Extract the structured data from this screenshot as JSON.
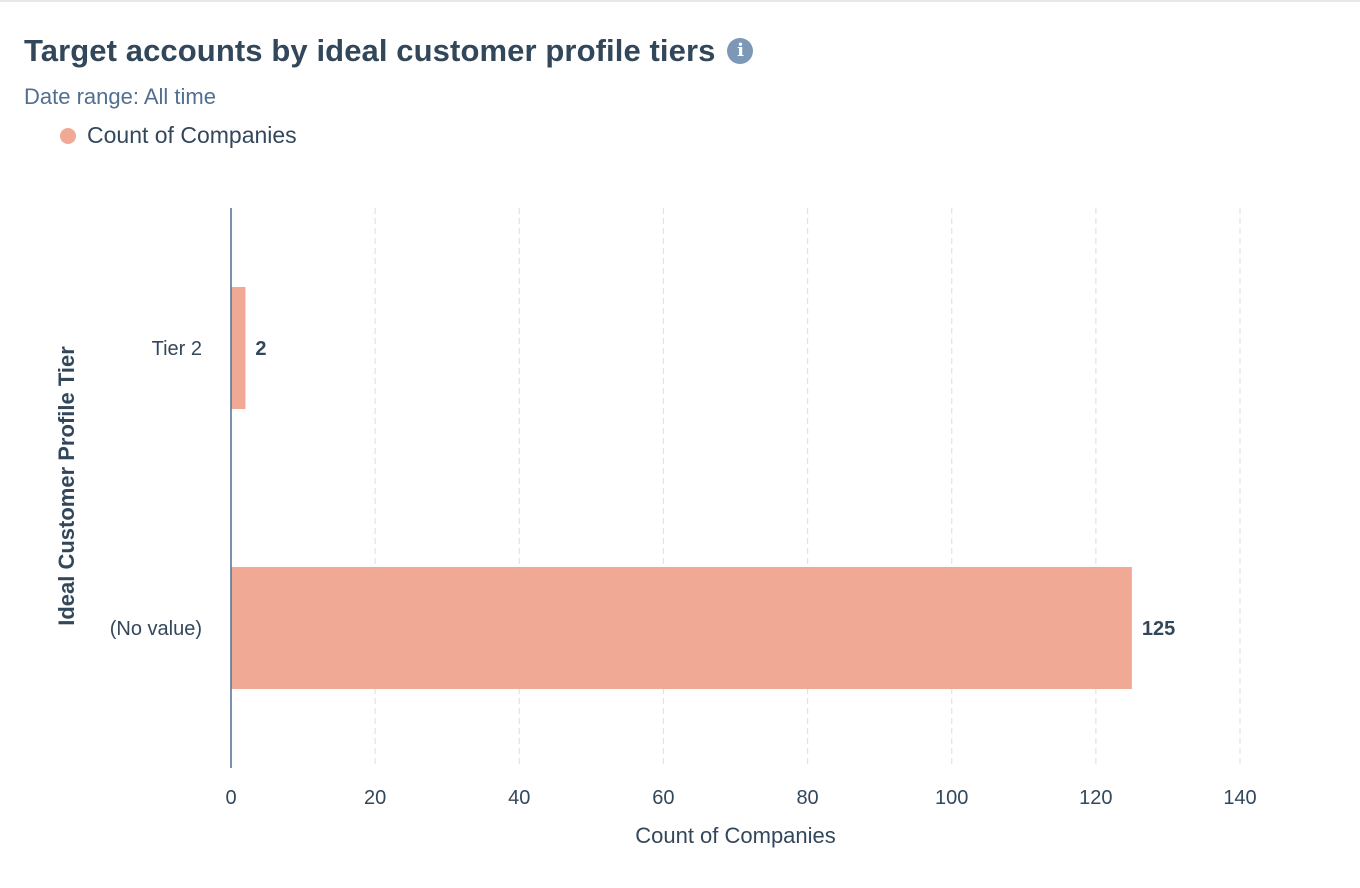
{
  "header": {
    "title": "Target accounts by ideal customer profile tiers",
    "info_icon": "info-icon",
    "date_range": "Date range: All time"
  },
  "colors": {
    "bar": "#f0a995",
    "axis_line": "#516f90",
    "grid": "#dfe3eb",
    "text": "#33475b",
    "info_icon_bg": "#7c98b6"
  },
  "chart_data": {
    "type": "bar",
    "orientation": "horizontal",
    "categories": [
      "Tier 2",
      "(No value)"
    ],
    "series": [
      {
        "name": "Count of Companies",
        "values": [
          2,
          125
        ]
      }
    ],
    "data_labels": [
      "2",
      "125"
    ],
    "xlabel": "Count of Companies",
    "ylabel": "Ideal Customer Profile Tier",
    "xlim": [
      0,
      140
    ],
    "xticks": [
      "0",
      "20",
      "40",
      "60",
      "80",
      "100",
      "120",
      "140"
    ],
    "grid": "vertical dashed",
    "legend_position": "top-left"
  }
}
